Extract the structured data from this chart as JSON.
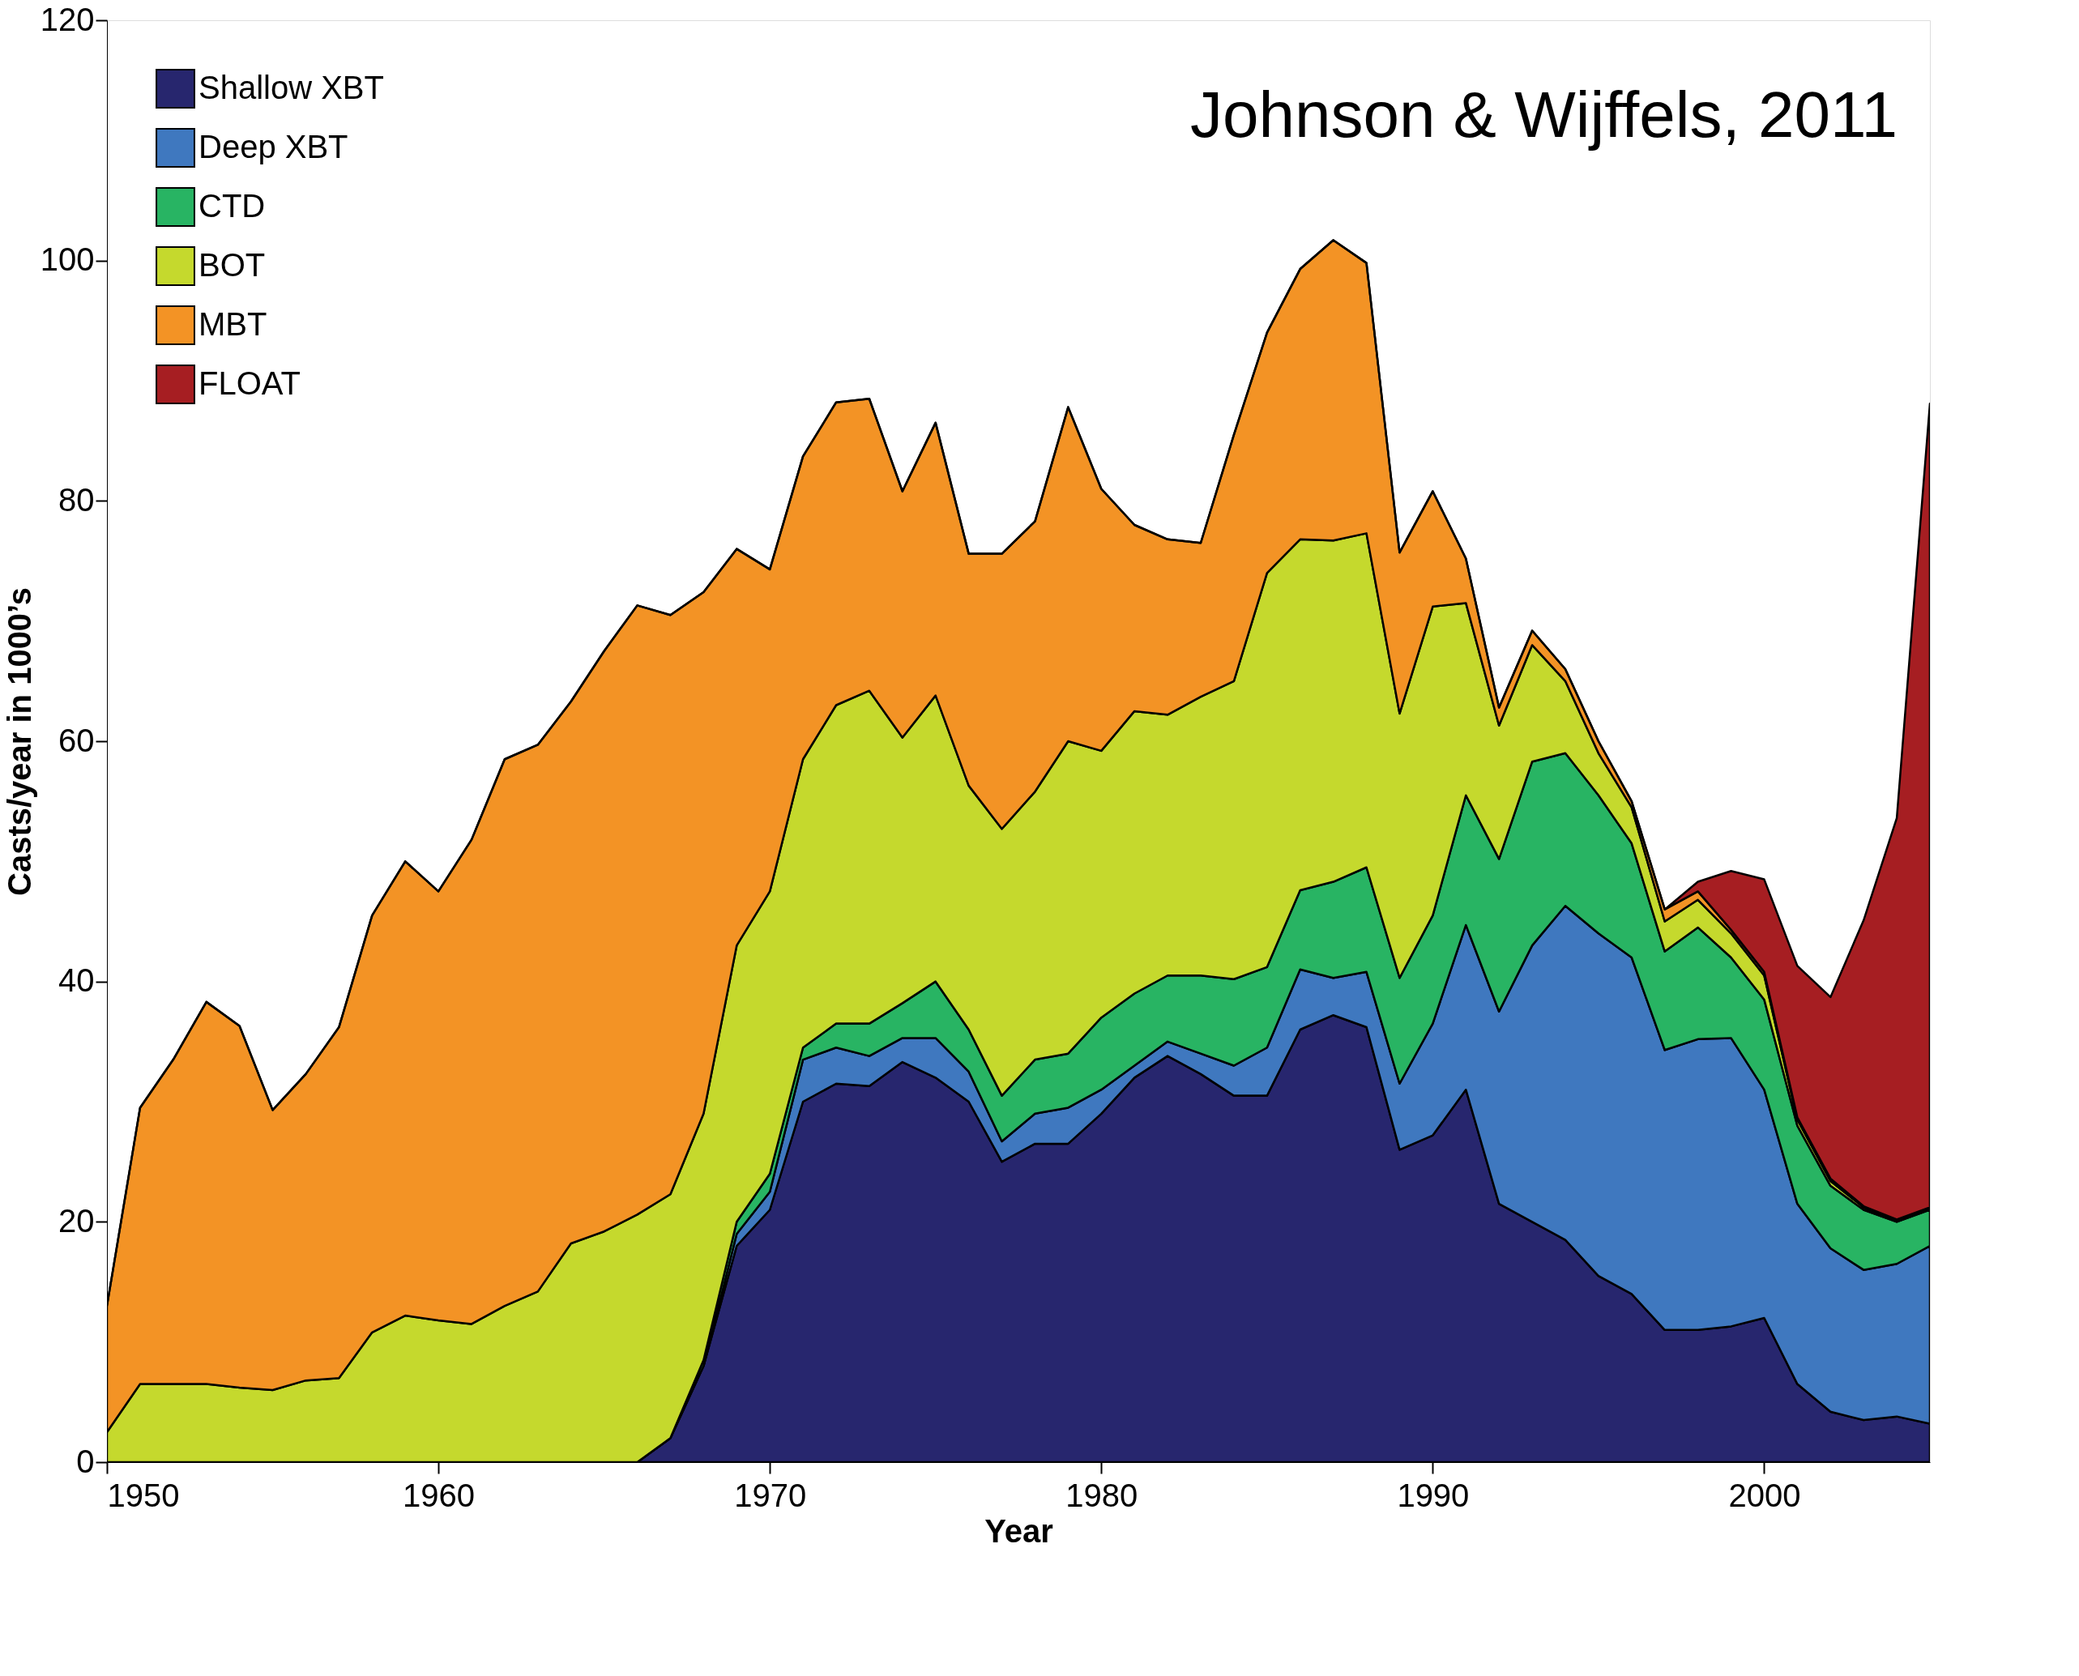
{
  "chart_data": {
    "type": "area",
    "stacked": true,
    "xlabel": "Year",
    "ylabel": "Casts/year in 1000’s",
    "annotations": [
      "Johnson & Wijffels, 2011"
    ],
    "x": [
      1950,
      1951,
      1952,
      1953,
      1954,
      1955,
      1956,
      1957,
      1958,
      1959,
      1960,
      1961,
      1962,
      1963,
      1964,
      1965,
      1966,
      1967,
      1968,
      1969,
      1970,
      1971,
      1972,
      1973,
      1974,
      1975,
      1976,
      1977,
      1978,
      1979,
      1980,
      1981,
      1982,
      1983,
      1984,
      1985,
      1986,
      1987,
      1988,
      1989,
      1990,
      1991,
      1992,
      1993,
      1994,
      1995,
      1996,
      1997,
      1998,
      1999,
      2000,
      2001,
      2002,
      2003,
      2004,
      2005
    ],
    "xlim": [
      1950,
      2005
    ],
    "xticks": [
      1950,
      1960,
      1970,
      1980,
      1990,
      2000
    ],
    "ylim": [
      0,
      120
    ],
    "yticks": [
      0,
      20,
      40,
      60,
      80,
      100,
      120
    ],
    "grid": false,
    "legend": "top left",
    "series": [
      {
        "name": "Shallow XBT",
        "color": "#27266e",
        "values": [
          0,
          0,
          0,
          0,
          0,
          0,
          0,
          0,
          0,
          0,
          0,
          0,
          0,
          0,
          0,
          0,
          0,
          2,
          8,
          18,
          21,
          30,
          31.5,
          31.3,
          33.3,
          32,
          30,
          25,
          26.5,
          26.5,
          29,
          32,
          33.8,
          32.3,
          30.5,
          30.5,
          36,
          37.2,
          36.2,
          26,
          27.2,
          31,
          21.5,
          20,
          18.5,
          15.5,
          14,
          11,
          11,
          11.3,
          12,
          6.5,
          4.2,
          3.5,
          3.8,
          3.2
        ]
      },
      {
        "name": "Deep XBT",
        "color": "#3f78bf",
        "values": [
          0,
          0,
          0,
          0,
          0,
          0,
          0,
          0,
          0,
          0,
          0,
          0,
          0,
          0,
          0,
          0,
          0,
          0,
          0,
          1,
          1.5,
          3.5,
          3,
          2.5,
          2,
          3.3,
          2.5,
          1.7,
          2.5,
          3,
          2,
          1,
          1.2,
          1.7,
          2.5,
          4,
          5,
          3.1,
          4.6,
          5.5,
          9.3,
          13.7,
          16,
          23,
          27.8,
          28.5,
          28,
          23.3,
          24.2,
          24,
          19,
          15,
          13.6,
          12.5,
          12.7,
          14.8
        ]
      },
      {
        "name": "CTD",
        "color": "#28b463",
        "values": [
          0,
          0,
          0,
          0,
          0,
          0,
          0,
          0,
          0,
          0,
          0,
          0,
          0,
          0,
          0,
          0,
          0,
          0,
          0.5,
          1,
          1.5,
          1,
          2,
          2.7,
          2.9,
          4.7,
          3.5,
          3.8,
          4.5,
          4.5,
          6,
          6,
          5.5,
          6.5,
          7.2,
          6.7,
          6.6,
          8,
          8.7,
          8.8,
          9,
          10.8,
          12.7,
          15.3,
          12.7,
          11.5,
          9.5,
          8.2,
          9.3,
          6.7,
          7.5,
          6.5,
          5.2,
          5,
          3.5,
          3
        ]
      },
      {
        "name": "BOT",
        "color": "#c5d92d",
        "values": [
          2.5,
          6.5,
          6.5,
          6.5,
          6.2,
          6,
          6.8,
          7,
          10.8,
          12.2,
          11.8,
          11.5,
          13,
          14.2,
          18.2,
          19.2,
          20.6,
          20.3,
          20.5,
          23,
          23.5,
          24,
          26.5,
          27.7,
          22.1,
          23.8,
          20.3,
          22.2,
          22.3,
          26,
          22.2,
          23.5,
          21.7,
          23.2,
          24.8,
          32.8,
          29.2,
          28.4,
          27.8,
          22,
          25.7,
          16,
          11.1,
          9.7,
          6,
          3.5,
          3,
          2.5,
          2.3,
          2,
          2,
          0.5,
          0.4,
          0.2,
          0.1,
          0.1
        ]
      },
      {
        "name": "MBT",
        "color": "#f39325",
        "values": [
          10.5,
          23,
          27,
          31.8,
          30.1,
          23.3,
          25.5,
          29.2,
          34.7,
          37.8,
          35.7,
          40.3,
          45.5,
          45.5,
          45.1,
          48.3,
          50.7,
          48.2,
          43.4,
          33,
          26.8,
          25.2,
          25.2,
          24.3,
          20.5,
          22.7,
          19.3,
          22.9,
          22.5,
          27.8,
          21.8,
          15.5,
          14.6,
          12.8,
          20.5,
          20,
          22.5,
          25,
          22.5,
          13.4,
          9.6,
          3.7,
          1.5,
          1.2,
          1,
          1,
          0.5,
          1,
          0.7,
          0.3,
          0.3,
          0.2,
          0.2,
          0.1,
          0.1,
          0.1
        ]
      },
      {
        "name": "FLOAT",
        "color": "#a61e22",
        "values": [
          0,
          0,
          0,
          0,
          0,
          0,
          0,
          0,
          0,
          0,
          0,
          0,
          0,
          0,
          0,
          0,
          0,
          0,
          0,
          0,
          0,
          0,
          0,
          0,
          0,
          0,
          0,
          0,
          0,
          0,
          0,
          0,
          0,
          0,
          0,
          0,
          0,
          0,
          0,
          0,
          0,
          0,
          0,
          0,
          0,
          0,
          0,
          0,
          0.8,
          4.9,
          7.7,
          12.6,
          15.1,
          23.8,
          33.4,
          66.9
        ]
      }
    ]
  }
}
